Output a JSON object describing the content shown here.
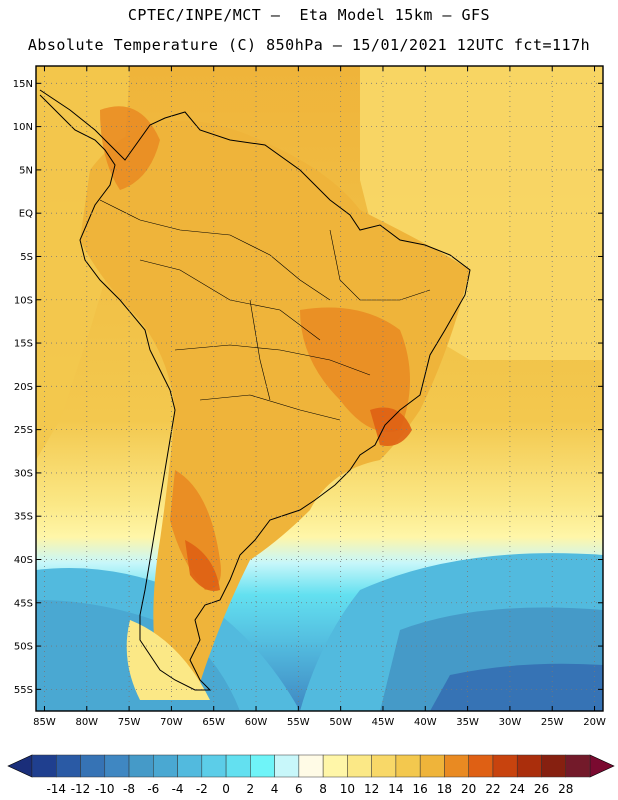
{
  "header": {
    "line1": "CPTEC/INPE/MCT –  Eta Model 15km – GFS",
    "line2": "Absolute Temperature (C) 850hPa – 15/01/2021 12UTC fct=117h"
  },
  "map": {
    "lat_labels": [
      "15N",
      "10N",
      "5N",
      "EQ",
      "5S",
      "10S",
      "15S",
      "20S",
      "25S",
      "30S",
      "35S",
      "40S",
      "45S",
      "50S",
      "55S"
    ],
    "lon_labels": [
      "85W",
      "80W",
      "75W",
      "70W",
      "65W",
      "60W",
      "55W",
      "50W",
      "45W",
      "40W",
      "35W",
      "30W",
      "25W",
      "20W"
    ],
    "lat_values": [
      15,
      10,
      5,
      0,
      -5,
      -10,
      -15,
      -20,
      -25,
      -30,
      -35,
      -40,
      -45,
      -50,
      -55
    ],
    "lon_values": [
      -85,
      -80,
      -75,
      -70,
      -65,
      -60,
      -55,
      -50,
      -45,
      -40,
      -35,
      -30,
      -25,
      -20
    ],
    "lat_range": [
      -57.5,
      17
    ],
    "lon_range": [
      -86,
      -19
    ]
  },
  "colorbar": {
    "labels": [
      "-14",
      "-12",
      "-10",
      "-8",
      "-6",
      "-4",
      "-2",
      "0",
      "2",
      "4",
      "6",
      "8",
      "10",
      "12",
      "14",
      "16",
      "18",
      "20",
      "22",
      "24",
      "26",
      "28"
    ],
    "colors": [
      "#1f3f8f",
      "#2a5aa5",
      "#3673b5",
      "#3f87c2",
      "#459ac8",
      "#4aa8d2",
      "#52bade",
      "#5ccde8",
      "#63e0f0",
      "#6ff4f8",
      "#c8f7fa",
      "#fffbe6",
      "#fff6a8",
      "#fbe886",
      "#f8d868",
      "#f3c84e",
      "#efb43a",
      "#e98a22",
      "#df6014",
      "#c8430e",
      "#aa2e0c",
      "#862010",
      "#731a2a"
    ],
    "under_color": "#1a2e7a",
    "over_color": "#7a0a30"
  }
}
